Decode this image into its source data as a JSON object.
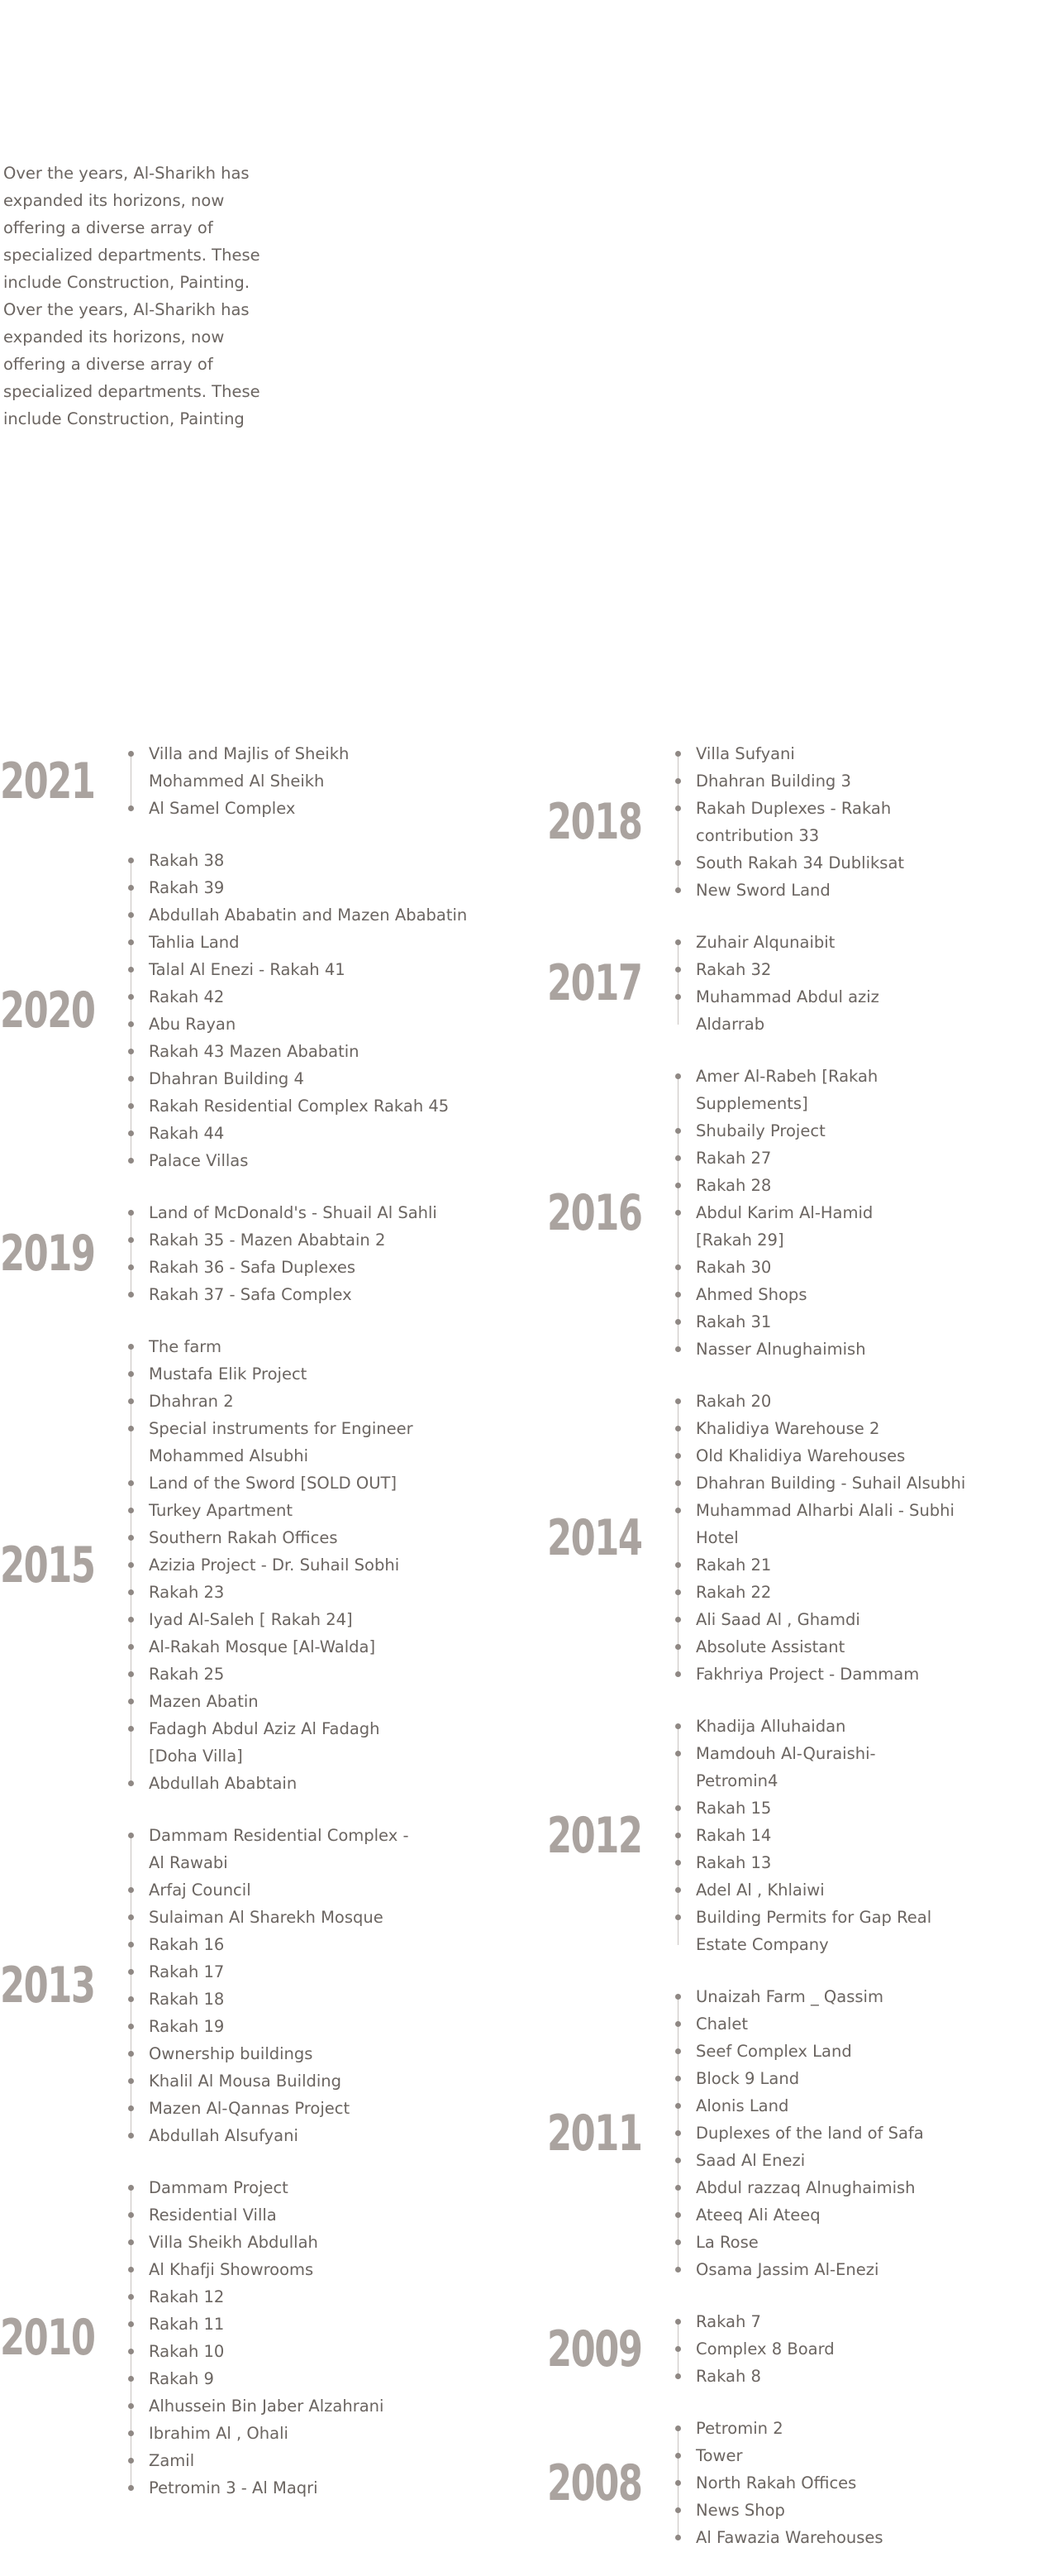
{
  "intro": {
    "text": "Over the years, Al-Sharikh has\nexpanded its horizons, now\noffering a diverse array of\nspecialized departments. These\ninclude Construction, Painting.\nOver the years, Al-Sharikh has\nexpanded its horizons, now\noffering a diverse array of\nspecialized departments. These\ninclude Construction, Painting"
  },
  "timeline": {
    "left": [
      {
        "year": "2021",
        "items": [
          "Villa and Majlis of Sheikh\nMohammed Al Sheikh",
          "Al Samel Complex"
        ]
      },
      {
        "year": "2020",
        "items": [
          "Rakah 38",
          "Rakah 39",
          "Abdullah Ababatin and Mazen Ababatin",
          "Tahlia Land",
          "Talal Al Enezi - Rakah 41",
          "Rakah 42",
          "Abu Rayan",
          "Rakah 43 Mazen Ababatin",
          "Dhahran Building 4",
          "Rakah Residential Complex Rakah 45",
          "Rakah 44",
          "Palace Villas"
        ]
      },
      {
        "year": "2019",
        "items": [
          "Land of McDonald's - Shuail Al Sahli",
          "Rakah 35 - Mazen Ababtain 2",
          "Rakah 36 - Safa Duplexes",
          "Rakah 37 - Safa Complex"
        ]
      },
      {
        "year": "2015",
        "items": [
          "The farm",
          "Mustafa Elik Project",
          "Dhahran 2",
          "Special instruments for Engineer\nMohammed Alsubhi",
          "Land of the Sword [SOLD OUT]",
          "Turkey Apartment",
          "Southern Rakah Offices",
          "Azizia Project - Dr. Suhail Sobhi",
          "Rakah 23",
          "Iyad Al-Saleh [ Rakah 24]",
          "Al-Rakah Mosque [Al-Walda]",
          "Rakah 25",
          "Mazen Abatin",
          "Fadagh Abdul Aziz Al Fadagh\n[Doha Villa]",
          "Abdullah Ababtain"
        ]
      },
      {
        "year": "2013",
        "items": [
          "Dammam Residential Complex -\nAl Rawabi",
          "Arfaj Council",
          "Sulaiman Al Sharekh Mosque",
          "Rakah 16",
          "Rakah 17",
          "Rakah 18",
          "Rakah 19",
          "Ownership buildings",
          "Khalil Al Mousa Building",
          "Mazen Al-Qannas Project",
          "Abdullah Alsufyani"
        ]
      },
      {
        "year": "2010",
        "items": [
          "Dammam Project",
          "Residential Villa",
          "Villa Sheikh Abdullah",
          "Al Khafji Showrooms",
          "Rakah 12",
          "Rakah 11",
          "Rakah 10",
          "Rakah 9",
          "Alhussein Bin Jaber Alzahrani",
          "Ibrahim Al , Ohali",
          "Zamil",
          "Petromin 3 - Al Maqri"
        ]
      }
    ],
    "right": [
      {
        "year": "2018",
        "items": [
          "Villa Sufyani",
          "Dhahran Building 3",
          "Rakah Duplexes - Rakah\ncontribution 33",
          "South Rakah 34 Dubliksat",
          "New Sword Land"
        ]
      },
      {
        "year": "2017",
        "items": [
          "Zuhair Alqunaibit",
          "Rakah 32",
          "Muhammad Abdul aziz\nAldarrab"
        ]
      },
      {
        "year": "2016",
        "items": [
          "Amer Al-Rabeh [Rakah\nSupplements]",
          "Shubaily Project",
          "Rakah 27",
          "Rakah 28",
          "Abdul Karim Al-Hamid\n[Rakah 29]",
          "Rakah 30",
          "Ahmed Shops",
          "Rakah 31",
          "Nasser Alnughaimish"
        ]
      },
      {
        "year": "2014",
        "items": [
          "Rakah 20",
          "Khalidiya Warehouse 2",
          "Old Khalidiya Warehouses",
          "Dhahran Building - Suhail Alsubhi",
          "Muhammad Alharbi Alali - Subhi\nHotel",
          "Rakah 21",
          "Rakah 22",
          "Ali Saad Al , Ghamdi",
          "Absolute Assistant",
          "Fakhriya Project - Dammam"
        ]
      },
      {
        "year": "2012",
        "items": [
          "Khadija Alluhaidan",
          "Mamdouh Al-Quraishi-\nPetromin4",
          "Rakah 15",
          "Rakah 14",
          "Rakah 13",
          "Adel Al , Khlaiwi",
          "Building Permits for Gap Real\nEstate Company"
        ]
      },
      {
        "year": "2011",
        "items": [
          "Unaizah Farm _ Qassim",
          "Chalet",
          "Seef Complex Land",
          "Block 9 Land",
          "Alonis Land",
          "Duplexes of the land of Safa",
          "Saad Al Enezi",
          "Abdul razzaq Alnughaimish",
          "Ateeq Ali Ateeq",
          "La Rose",
          "Osama Jassim Al-Enezi"
        ]
      },
      {
        "year": "2009",
        "items": [
          "Rakah 7",
          "Complex 8 Board",
          "Rakah 8"
        ]
      },
      {
        "year": "2008",
        "items": [
          "Petromin 2",
          "Tower",
          "North Rakah Offices",
          "News Shop",
          "Al Fawazia Warehouses"
        ]
      }
    ]
  }
}
